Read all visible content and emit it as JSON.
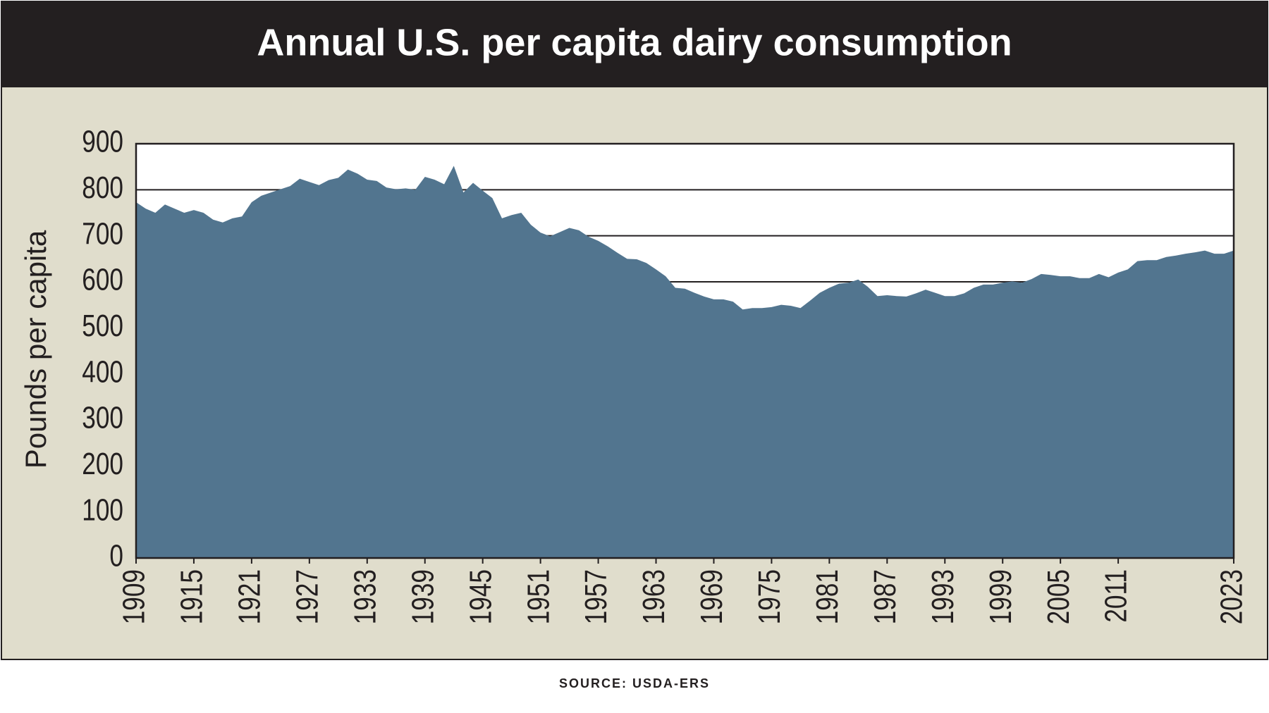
{
  "chart_data": {
    "type": "area",
    "title": "Annual U.S. per capita dairy consumption",
    "y_label": "Pounds per capita",
    "source": "SOURCE: USDA-ERS",
    "x": [
      1909,
      1910,
      1911,
      1912,
      1913,
      1914,
      1915,
      1916,
      1917,
      1918,
      1919,
      1920,
      1921,
      1922,
      1923,
      1924,
      1925,
      1926,
      1927,
      1928,
      1929,
      1930,
      1931,
      1932,
      1933,
      1934,
      1935,
      1936,
      1937,
      1938,
      1939,
      1940,
      1941,
      1942,
      1943,
      1944,
      1945,
      1946,
      1947,
      1948,
      1949,
      1950,
      1951,
      1952,
      1953,
      1954,
      1955,
      1956,
      1957,
      1958,
      1959,
      1960,
      1961,
      1962,
      1963,
      1964,
      1965,
      1966,
      1967,
      1968,
      1969,
      1970,
      1971,
      1972,
      1973,
      1974,
      1975,
      1976,
      1977,
      1978,
      1979,
      1980,
      1981,
      1982,
      1983,
      1984,
      1985,
      1986,
      1987,
      1988,
      1989,
      1990,
      1991,
      1992,
      1993,
      1994,
      1995,
      1996,
      1997,
      1998,
      1999,
      2000,
      2001,
      2002,
      2003,
      2004,
      2005,
      2006,
      2007,
      2008,
      2009,
      2010,
      2011,
      2012,
      2013,
      2014,
      2015,
      2016,
      2017,
      2018,
      2019,
      2020,
      2021,
      2022,
      2023
    ],
    "values": [
      773,
      759,
      750,
      768,
      759,
      750,
      756,
      750,
      735,
      729,
      738,
      742,
      773,
      787,
      794,
      801,
      808,
      824,
      817,
      810,
      821,
      826,
      844,
      835,
      822,
      819,
      805,
      801,
      803,
      800,
      828,
      822,
      812,
      852,
      794,
      815,
      798,
      782,
      738,
      745,
      750,
      724,
      707,
      699,
      708,
      717,
      712,
      698,
      689,
      677,
      663,
      650,
      649,
      641,
      627,
      612,
      587,
      585,
      576,
      568,
      562,
      562,
      557,
      540,
      543,
      543,
      545,
      550,
      548,
      543,
      559,
      576,
      587,
      596,
      598,
      605,
      589,
      569,
      571,
      569,
      568,
      575,
      583,
      576,
      569,
      569,
      575,
      587,
      594,
      594,
      598,
      601,
      598,
      606,
      617,
      615,
      612,
      612,
      608,
      608,
      617,
      610,
      620,
      627,
      645,
      647,
      647,
      654,
      657,
      661,
      664,
      668,
      661,
      661,
      668
    ],
    "color": "#52758f",
    "xlim": [
      1909,
      2023
    ],
    "xticks": [
      1909,
      1915,
      1921,
      1927,
      1933,
      1939,
      1945,
      1951,
      1957,
      1963,
      1969,
      1975,
      1981,
      1987,
      1993,
      1999,
      2005,
      2011,
      2023
    ],
    "ylim": [
      0,
      900
    ],
    "yticks": [
      0,
      100,
      200,
      300,
      400,
      500,
      600,
      700,
      800,
      900
    ],
    "grid": true
  }
}
